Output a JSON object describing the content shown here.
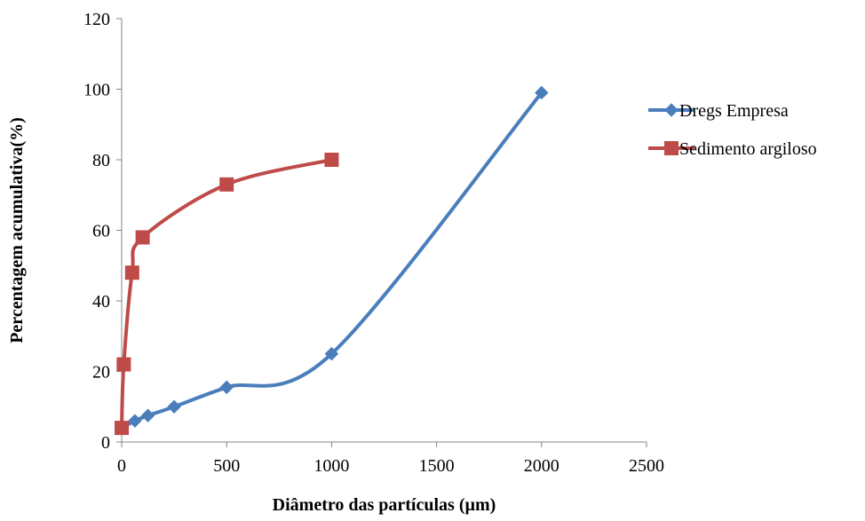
{
  "chart_data": {
    "type": "line",
    "title": "",
    "xlabel": "Diâmetro das partículas (µm)",
    "ylabel": "Percentagem acumulativa(%)",
    "xlim": [
      0,
      2500
    ],
    "ylim": [
      0,
      120
    ],
    "x_ticks": [
      "0",
      "500",
      "1000",
      "1500",
      "2000",
      "2500"
    ],
    "y_ticks": [
      "0",
      "20",
      "40",
      "60",
      "80",
      "100",
      "120"
    ],
    "grid": false,
    "smooth": true,
    "legend_position": "right",
    "series": [
      {
        "name": "Dregs Empresa",
        "color": "#4a7ebb",
        "marker": "diamond",
        "x": [
          0,
          63,
          125,
          250,
          500,
          1000,
          2000
        ],
        "y": [
          4,
          6,
          7.5,
          10,
          15.5,
          25,
          99
        ]
      },
      {
        "name": "Sedimento argiloso",
        "color": "#be4b48",
        "marker": "square",
        "x": [
          0,
          10,
          50,
          100,
          500,
          1000
        ],
        "y": [
          4,
          22,
          48,
          58,
          73,
          80
        ]
      }
    ]
  }
}
